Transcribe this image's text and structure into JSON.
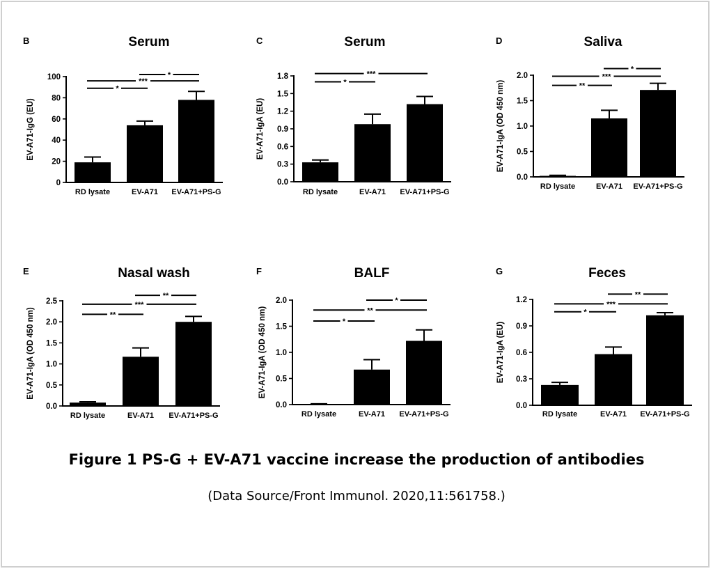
{
  "caption": {
    "title": "Figure 1 PS-G + EV-A71 vaccine increase the production of antibodies",
    "source": "(Data Source/Front Immunol. 2020,11:561758.)"
  },
  "colors": {
    "bar": "#000000",
    "frame": "#cfcfcf",
    "background": "#ffffff"
  },
  "chart_data": [
    {
      "type": "bar",
      "letter": "B",
      "title": "Serum",
      "ylabel": "EV-A71-IgG (EU)",
      "xlabel": "",
      "categories": [
        "RD lysate",
        "EV-A71",
        "EV-A71+PS-G"
      ],
      "values": [
        19,
        54,
        78
      ],
      "errors": [
        5,
        4,
        8
      ],
      "ylim": [
        0,
        100
      ],
      "yticks": [
        0,
        20,
        40,
        60,
        80,
        100
      ],
      "tick_labels": [
        "0",
        "20",
        "40",
        "60",
        "80",
        "100"
      ],
      "significance": [
        {
          "from": 1,
          "to": 2,
          "label": "*",
          "level": 102
        },
        {
          "from": 0,
          "to": 2,
          "label": "***",
          "level": 96
        },
        {
          "from": 0,
          "to": 1,
          "label": "*",
          "level": 89
        }
      ]
    },
    {
      "type": "bar",
      "letter": "C",
      "title": "Serum",
      "ylabel": "EV-A71-IgA (EU)",
      "xlabel": "",
      "categories": [
        "RD lysate",
        "EV-A71",
        "EV-A71+PS-G"
      ],
      "values": [
        0.33,
        0.98,
        1.32
      ],
      "errors": [
        0.04,
        0.17,
        0.13
      ],
      "ylim": [
        0,
        1.8
      ],
      "yticks": [
        0,
        0.3,
        0.6,
        0.9,
        1.2,
        1.5,
        1.8
      ],
      "tick_labels": [
        "0.0",
        "0.3",
        "0.6",
        "0.9",
        "1.2",
        "1.5",
        "1.8"
      ],
      "significance": [
        {
          "from": 0,
          "to": 2,
          "label": "***",
          "level": 1.84
        },
        {
          "from": 0,
          "to": 1,
          "label": "*",
          "level": 1.7
        }
      ]
    },
    {
      "type": "bar",
      "letter": "D",
      "title": "Saliva",
      "ylabel": "EV-A71-IgA (OD 450 nm)",
      "xlabel": "",
      "categories": [
        "RD lysate",
        "EV-A71",
        "EV-A71+PS-G"
      ],
      "values": [
        0.02,
        1.15,
        1.71
      ],
      "errors": [
        0.01,
        0.16,
        0.13
      ],
      "ylim": [
        0,
        2.0
      ],
      "yticks": [
        0,
        0.5,
        1.0,
        1.5,
        2.0
      ],
      "tick_labels": [
        "0.0",
        "0.5",
        "1.0",
        "1.5",
        "2.0"
      ],
      "significance": [
        {
          "from": 1,
          "to": 2,
          "label": "*",
          "level": 2.13
        },
        {
          "from": 0,
          "to": 2,
          "label": "***",
          "level": 1.98
        },
        {
          "from": 0,
          "to": 1,
          "label": "**",
          "level": 1.8
        }
      ]
    },
    {
      "type": "bar",
      "letter": "E",
      "title": "Nasal wash",
      "ylabel": "EV-A71-IgA (OD 450 nm)",
      "xlabel": "",
      "categories": [
        "RD lysate",
        "EV-A71",
        "EV-A71+PS-G"
      ],
      "values": [
        0.08,
        1.17,
        2.0
      ],
      "errors": [
        0.02,
        0.21,
        0.13
      ],
      "ylim": [
        0,
        2.5
      ],
      "yticks": [
        0,
        0.5,
        1.0,
        1.5,
        2.0,
        2.5
      ],
      "tick_labels": [
        "0.0",
        "0.5",
        "1.0",
        "1.5",
        "2.0",
        "2.5"
      ],
      "significance": [
        {
          "from": 1,
          "to": 2,
          "label": "**",
          "level": 2.63
        },
        {
          "from": 0,
          "to": 2,
          "label": "***",
          "level": 2.42
        },
        {
          "from": 0,
          "to": 1,
          "label": "**",
          "level": 2.18
        }
      ]
    },
    {
      "type": "bar",
      "letter": "F",
      "title": "BALF",
      "ylabel": "EV-A71-IgA (OD 450 nm)",
      "xlabel": "",
      "categories": [
        "RD lysate",
        "EV-A71",
        "EV-A71+PS-G"
      ],
      "values": [
        0.01,
        0.67,
        1.22
      ],
      "errors": [
        0.005,
        0.19,
        0.21
      ],
      "ylim": [
        0,
        2.0
      ],
      "yticks": [
        0,
        0.5,
        1.0,
        1.5,
        2.0
      ],
      "tick_labels": [
        "0.0",
        "0.5",
        "1.0",
        "1.5",
        "2.0"
      ],
      "significance": [
        {
          "from": 1,
          "to": 2,
          "label": "*",
          "level": 2.0
        },
        {
          "from": 0,
          "to": 2,
          "label": "**",
          "level": 1.81
        },
        {
          "from": 0,
          "to": 1,
          "label": "*",
          "level": 1.6
        }
      ]
    },
    {
      "type": "bar",
      "letter": "G",
      "title": "Feces",
      "ylabel": "EV-A71-IgA (EU)",
      "xlabel": "",
      "categories": [
        "RD lysate",
        "EV-A71",
        "EV-A71+PS-G"
      ],
      "values": [
        0.23,
        0.58,
        1.02
      ],
      "errors": [
        0.03,
        0.08,
        0.03
      ],
      "ylim": [
        0,
        1.2
      ],
      "yticks": [
        0,
        0.3,
        0.6,
        0.9,
        1.2
      ],
      "tick_labels": [
        "0.0",
        "0.3",
        "0.6",
        "0.9",
        "1.2"
      ],
      "significance": [
        {
          "from": 1,
          "to": 2,
          "label": "**",
          "level": 1.26
        },
        {
          "from": 0,
          "to": 2,
          "label": "***",
          "level": 1.15
        },
        {
          "from": 0,
          "to": 1,
          "label": "*",
          "level": 1.06
        }
      ]
    }
  ]
}
